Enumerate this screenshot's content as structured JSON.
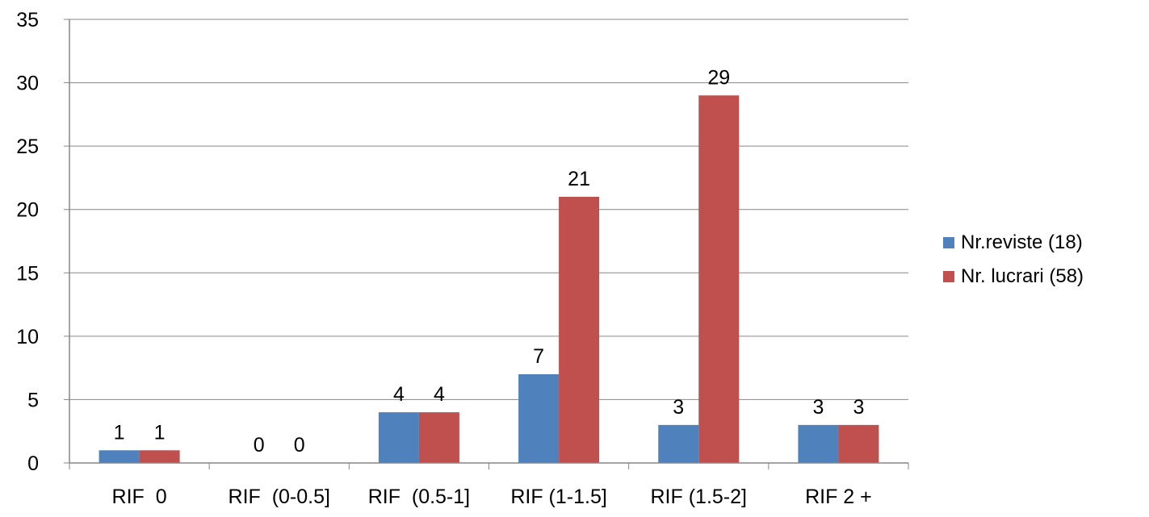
{
  "chart_data": {
    "type": "bar",
    "title": "",
    "xlabel": "",
    "ylabel": "",
    "categories": [
      "RIF  0",
      "RIF  (0-0.5]",
      "RIF  (0.5-1]",
      "RIF (1-1.5]",
      "RIF (1.5-2]",
      "RIF 2 +"
    ],
    "series": [
      {
        "name": "Nr.reviste (18)",
        "values": [
          1,
          0,
          4,
          7,
          3,
          3
        ],
        "color": "#4F81BD"
      },
      {
        "name": "Nr. lucrari (58)",
        "values": [
          1,
          0,
          4,
          21,
          29,
          3
        ],
        "color": "#C0504D"
      }
    ],
    "ylim": [
      0,
      35
    ],
    "yticks": [
      0,
      5,
      10,
      15,
      20,
      25,
      30,
      35
    ],
    "grid": true,
    "legend_position": "right",
    "data_labels": true
  }
}
